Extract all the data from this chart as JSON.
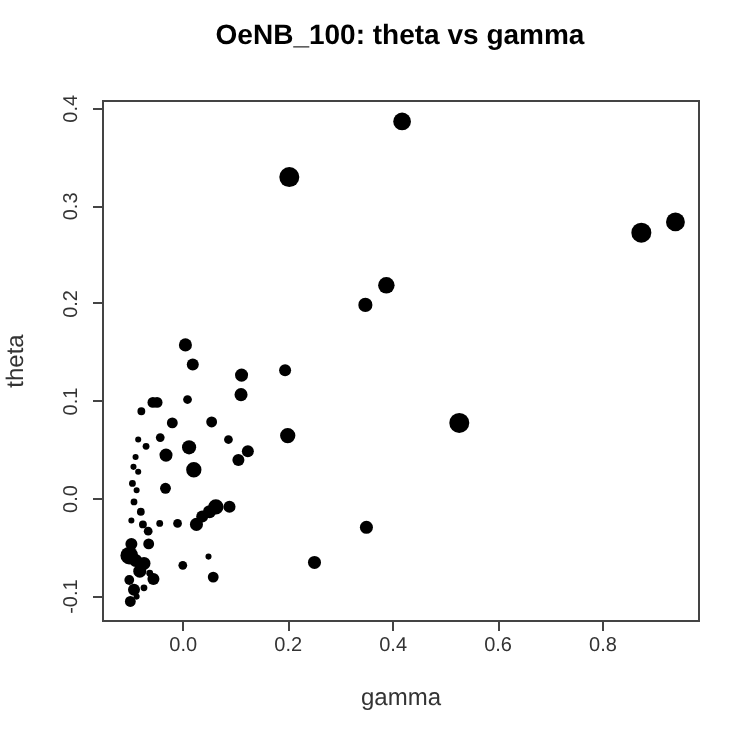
{
  "chart_data": {
    "type": "bubble",
    "title": "OeNB_100: theta vs gamma",
    "xlabel": "gamma",
    "ylabel": "theta",
    "xlim": [
      -0.153,
      0.983
    ],
    "ylim": [
      -0.125,
      0.408
    ],
    "xticks": [
      {
        "value": 0,
        "label": "0.0"
      },
      0.2,
      0.4,
      0.6,
      0.8
    ],
    "yticks": [
      -0.1,
      {
        "value": 0,
        "label": "0.0"
      },
      0.1,
      0.2,
      0.3,
      0.4
    ],
    "grid": false,
    "marker": "circle",
    "series": [
      {
        "color": "#000000",
        "x": [
          0.419,
          0.204,
          0.875,
          0.94,
          0.389,
          0.349,
          0.528,
          0.201,
          0.196,
          0.113,
          0.112,
          0.107,
          0.125,
          0.351,
          0.252,
          0.006,
          0.02,
          0.01,
          0.056,
          0.088,
          0.013,
          0.022,
          -0.019,
          -0.031,
          -0.042,
          -0.056,
          -0.048,
          -0.032,
          0.09,
          0.064,
          0.052,
          0.038,
          0.027,
          -0.009,
          -0.043,
          0.001,
          0.059,
          0.05,
          -0.055,
          -0.064,
          -0.065,
          -0.075,
          -0.079,
          -0.069,
          -0.078,
          -0.084,
          -0.087,
          -0.095,
          -0.093,
          -0.092,
          -0.097,
          -0.089,
          -0.084,
          -0.101,
          -0.097,
          -0.089,
          -0.073,
          -0.081,
          -0.092,
          -0.101,
          -0.099,
          -0.073,
          -0.062,
          -0.087
        ],
        "values": [
          0.386,
          0.329,
          0.272,
          0.283,
          0.218,
          0.198,
          0.077,
          0.064,
          0.131,
          0.126,
          0.106,
          0.039,
          0.048,
          -0.03,
          -0.066,
          0.157,
          0.137,
          0.101,
          0.078,
          0.06,
          0.052,
          0.029,
          0.077,
          0.044,
          0.062,
          0.098,
          0.098,
          0.01,
          -0.009,
          -0.009,
          -0.014,
          -0.019,
          -0.027,
          -0.026,
          -0.026,
          -0.069,
          -0.081,
          -0.06,
          -0.083,
          -0.047,
          -0.034,
          -0.027,
          -0.014,
          0.053,
          0.089,
          0.027,
          0.008,
          0.015,
          0.032,
          -0.004,
          -0.023,
          0.042,
          0.06,
          -0.059,
          -0.047,
          -0.064,
          -0.067,
          -0.075,
          -0.094,
          -0.084,
          -0.106,
          -0.092,
          -0.077,
          -0.101
        ],
        "sizes": [
          0.77,
          1,
          1,
          0.88,
          0.66,
          0.47,
          1,
          0.56,
          0.32,
          0.39,
          0.39,
          0.32,
          0.32,
          0.39,
          0.39,
          0.39,
          0.32,
          0.14,
          0.25,
          0.14,
          0.47,
          0.56,
          0.25,
          0.39,
          0.14,
          0.25,
          0.25,
          0.25,
          0.32,
          0.56,
          0.39,
          0.32,
          0.39,
          0.14,
          0.06,
          0.14,
          0.25,
          0.035,
          0.32,
          0.25,
          0.14,
          0.1,
          0.1,
          0.06,
          0.1,
          0.035,
          0.035,
          0.06,
          0.035,
          0.06,
          0.035,
          0.035,
          0.035,
          0.77,
          0.32,
          0.39,
          0.39,
          0.39,
          0.32,
          0.19,
          0.25,
          0.06,
          0.06,
          0.035
        ]
      }
    ]
  }
}
